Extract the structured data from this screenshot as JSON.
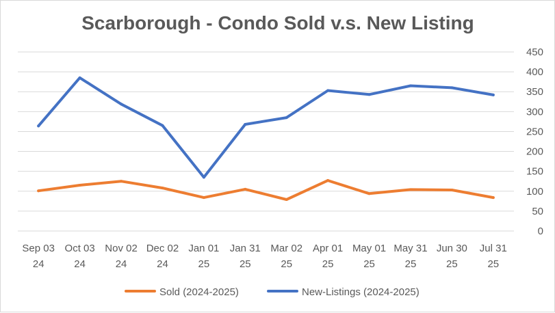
{
  "chart_data": {
    "type": "line",
    "title": "Scarborough - Condo Sold v.s. New Listing",
    "categories": [
      [
        "Sep 03",
        "24"
      ],
      [
        "Oct 03",
        "24"
      ],
      [
        "Nov 02",
        "24"
      ],
      [
        "Dec 02",
        "24"
      ],
      [
        "Jan 01",
        "25"
      ],
      [
        "Jan 31",
        "25"
      ],
      [
        "Mar 02",
        "25"
      ],
      [
        "Apr 01",
        "25"
      ],
      [
        "May 01",
        "25"
      ],
      [
        "May 31",
        "25"
      ],
      [
        "Jun 30",
        "25"
      ],
      [
        "Jul 31",
        "25"
      ]
    ],
    "series": [
      {
        "name": "Sold (2024-2025)",
        "color": "#ED7D31",
        "values": [
          101,
          115,
          125,
          108,
          84,
          105,
          79,
          127,
          94,
          104,
          103,
          84
        ]
      },
      {
        "name": "New-Listings (2024-2025)",
        "color": "#4472C4",
        "values": [
          264,
          385,
          319,
          265,
          135,
          268,
          285,
          353,
          343,
          365,
          360,
          342
        ]
      }
    ],
    "ylim": [
      0,
      450
    ],
    "yticks": [
      0,
      50,
      100,
      150,
      200,
      250,
      300,
      350,
      400,
      450
    ],
    "yaxis_position": "right",
    "grid": true,
    "legend_position": "bottom"
  }
}
